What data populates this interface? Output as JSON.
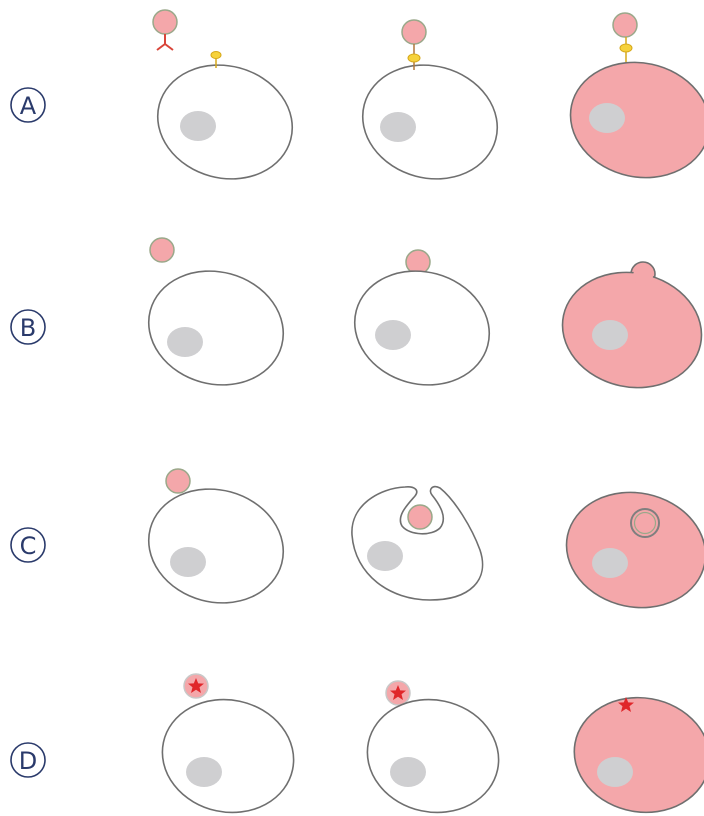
{
  "rows": [
    {
      "label": "A"
    },
    {
      "label": "B"
    },
    {
      "label": "C"
    },
    {
      "label": "D"
    }
  ]
}
